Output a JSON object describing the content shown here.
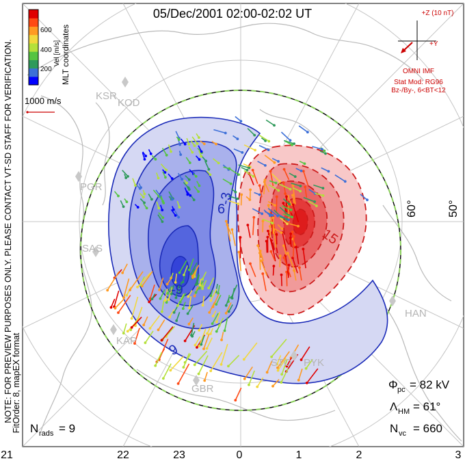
{
  "title": "05/Dec/2001 02:00-02:02 UT",
  "coord_label": "MLT coordinates",
  "colorbar": {
    "label": "Vel [m/s]",
    "ticks": [
      "600",
      "400",
      "200"
    ],
    "colors": [
      "#0000ff",
      "#3c6fd8",
      "#2f9a5b",
      "#55c441",
      "#b4e03a",
      "#f2d83c",
      "#ff9a22",
      "#ff4a14",
      "#e00000"
    ]
  },
  "scale_vector": {
    "label": "1000 m/s",
    "color": "#cc0000"
  },
  "side_note": "NOTE: FOR PREVIEW PURPOSES ONLY. PLEASE CONTACT VT-SD STAFF FOR VERIFICATION.",
  "fit_order": "FitOrder: 8, mapEX format",
  "imf": {
    "z_label": "+Z (10 nT)",
    "y_label": "+Y",
    "source": "OMNI IMF",
    "model": "Stat Mod: RG96",
    "bin": "Bz-/By-, 6<BT<12",
    "color": "#cc0000"
  },
  "latitude_labels": [
    "60°",
    "50°"
  ],
  "station_labels": [
    "KSR",
    "KOD",
    "PGR",
    "SAS",
    "KAP",
    "GBR",
    "STO",
    "PYK",
    "HAN"
  ],
  "contour_labels": [
    "6",
    "-3",
    "-9",
    "9",
    "15"
  ],
  "stats": {
    "phi_pc_label": "Φ",
    "phi_pc_sub": "pc",
    "phi_pc_value": "= 82 kV",
    "lambda_hm_label": "Λ",
    "lambda_hm_sub": "HM",
    "lambda_hm_value": "= 61°",
    "n_vc_label": "N",
    "n_vc_sub": "vc",
    "n_vc_value": "= 660",
    "n_rads_label": "N",
    "n_rads_sub": "rads",
    "n_rads_value": "= 9"
  },
  "mlt_axis": [
    "21",
    "22",
    "23",
    "0",
    "1",
    "2",
    "3"
  ],
  "colors": {
    "negative_cell": "#5a6fe0",
    "positive_cell": "#ec3b3b",
    "contour_neg": "#1a2ab8",
    "contour_pos": "#cc1a1a",
    "hm_boundary": "#8ad05a",
    "grid": "#c4c4c4",
    "coast": "#b9b9b9"
  }
}
